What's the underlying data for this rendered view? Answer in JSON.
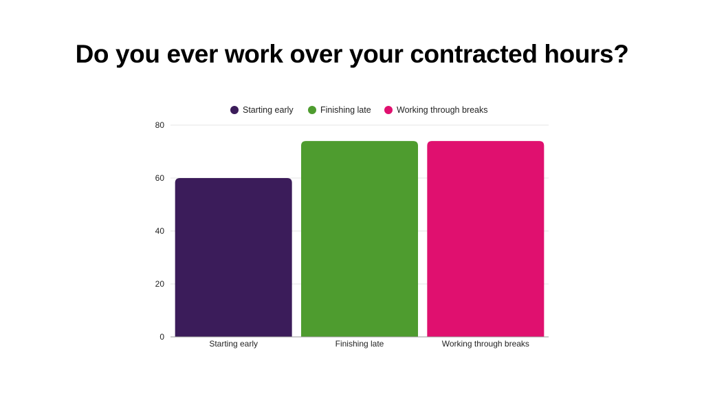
{
  "chart_data": {
    "type": "bar",
    "title": "Do you ever work over your contracted hours?",
    "categories": [
      "Starting early",
      "Finishing late",
      "Working through breaks"
    ],
    "values": [
      60,
      74,
      74
    ],
    "colors": [
      "#3b1c5a",
      "#4e9c2f",
      "#e0106f"
    ],
    "legend": [
      "Starting early",
      "Finishing late",
      "Working through breaks"
    ],
    "legend_position": "top",
    "y_ticks": [
      0,
      20,
      40,
      60,
      80
    ],
    "ylim": [
      0,
      80
    ],
    "xlabel": "",
    "ylabel": "",
    "grid": true
  }
}
